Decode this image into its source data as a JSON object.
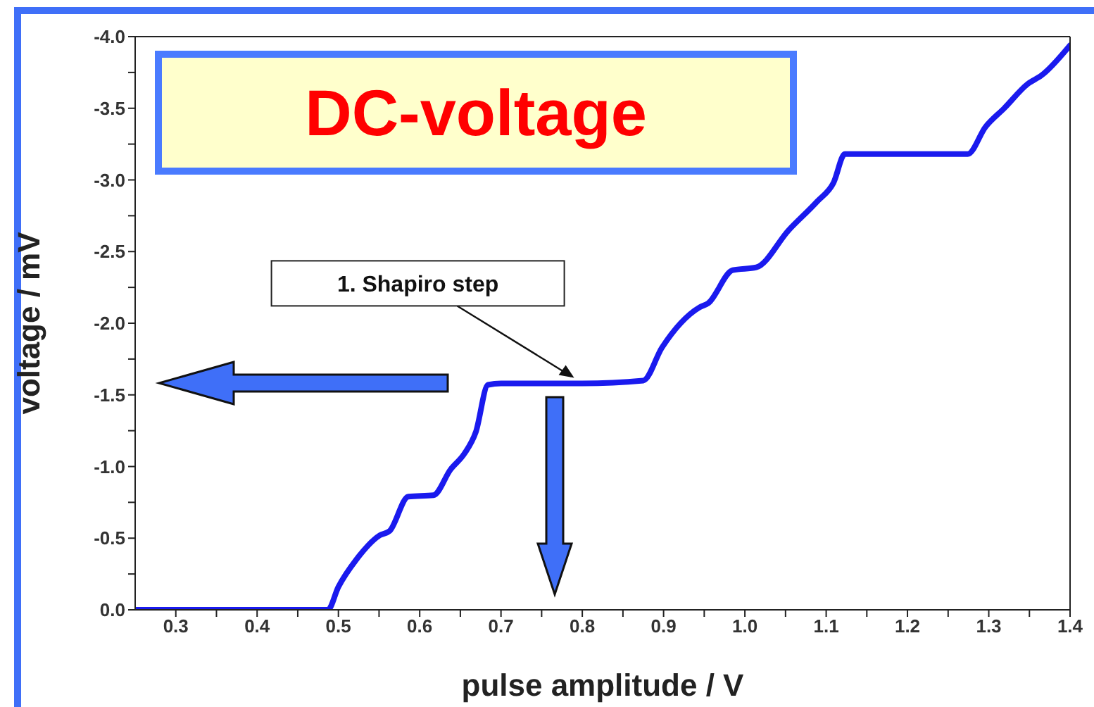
{
  "chart_data": {
    "type": "line",
    "title": "DC-voltage",
    "xlabel": "pulse amplitude / V",
    "ylabel": "voltage / mV",
    "x": [
      0.25,
      0.3,
      0.4,
      0.48,
      0.487,
      0.5,
      0.522,
      0.551,
      0.563,
      0.586,
      0.617,
      0.638,
      0.655,
      0.669,
      0.684,
      0.7,
      0.8,
      0.875,
      0.898,
      0.944,
      0.955,
      0.985,
      1.014,
      1.054,
      1.089,
      1.109,
      1.123,
      1.2,
      1.274,
      1.296,
      1.319,
      1.348,
      1.365,
      1.4
    ],
    "series": [
      {
        "color": "#1a1aee",
        "values": [
          0,
          0,
          0,
          0,
          0,
          -0.16,
          -0.35,
          -0.52,
          -0.55,
          -0.79,
          -0.8,
          -0.98,
          -1.09,
          -1.24,
          -1.57,
          -1.58,
          -1.58,
          -1.6,
          -1.83,
          -2.11,
          -2.14,
          -2.37,
          -2.39,
          -2.65,
          -2.85,
          -2.98,
          -3.18,
          -3.18,
          -3.18,
          -3.37,
          -3.5,
          -3.67,
          -3.73,
          -3.94
        ]
      }
    ],
    "xlim": [
      0.25,
      1.4
    ],
    "xticks": [
      0.3,
      {
        "value": 0.35,
        "label": null
      },
      0.4,
      {
        "value": 0.45,
        "label": null
      },
      0.5,
      {
        "value": 0.55,
        "label": null
      },
      0.6,
      {
        "value": 0.65,
        "label": null
      },
      0.7,
      {
        "value": 0.75,
        "label": null
      },
      0.8,
      {
        "value": 0.85,
        "label": null
      },
      0.9,
      {
        "value": 0.95,
        "label": null
      },
      {
        "value": 1.0,
        "label": "1.0"
      },
      {
        "value": 1.05,
        "label": null
      },
      1.1,
      {
        "value": 1.15,
        "label": null
      },
      1.2,
      {
        "value": 1.25,
        "label": null
      },
      1.3,
      {
        "value": 1.35,
        "label": null
      },
      1.4
    ],
    "ylim": [
      0,
      -4.0
    ],
    "yticks": [
      {
        "value": 0,
        "label": "0.0"
      },
      {
        "value": -0.25,
        "label": null
      },
      -0.5,
      {
        "value": -0.75,
        "label": null
      },
      {
        "value": -1.0,
        "label": "-1.0"
      },
      {
        "value": -1.25,
        "label": null
      },
      -1.5,
      {
        "value": -1.75,
        "label": null
      },
      {
        "value": -2.0,
        "label": "-2.0"
      },
      {
        "value": -2.25,
        "label": null
      },
      -2.5,
      {
        "value": -2.75,
        "label": null
      },
      {
        "value": -3.0,
        "label": "-3.0"
      },
      {
        "value": -3.25,
        "label": null
      },
      -3.5,
      {
        "value": -3.75,
        "label": null
      },
      {
        "value": -4.0,
        "label": "-4.0"
      }
    ],
    "annotations": [
      {
        "text": "1. Shapiro step",
        "x": 0.79,
        "y": -1.6
      }
    ],
    "grid": false,
    "legend": false,
    "marker": "none",
    "line_style": "solid"
  }
}
